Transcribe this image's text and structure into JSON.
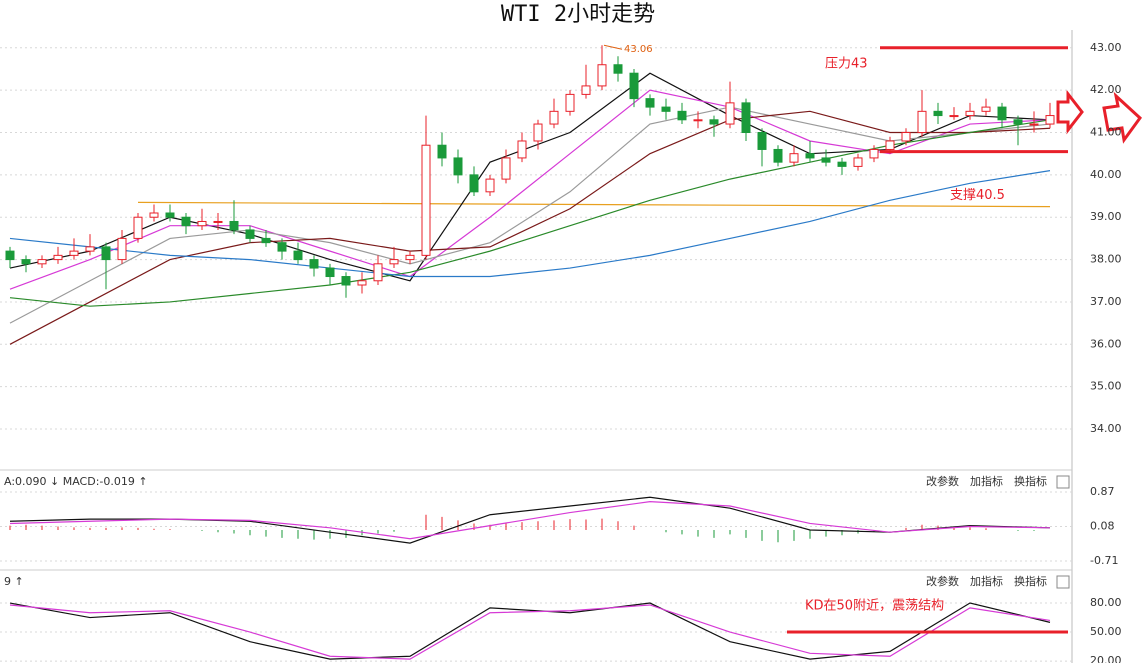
{
  "chart_data": [
    {
      "type": "candlestick",
      "title": "WTI 2小时走势",
      "ohlc": [
        [
          38.2,
          38.3,
          37.8,
          38.0
        ],
        [
          38.0,
          38.1,
          37.7,
          37.9
        ],
        [
          37.9,
          38.1,
          37.8,
          38.0
        ],
        [
          38.0,
          38.3,
          37.9,
          38.1
        ],
        [
          38.1,
          38.5,
          38.0,
          38.2
        ],
        [
          38.2,
          38.6,
          38.1,
          38.3
        ],
        [
          38.3,
          38.4,
          37.3,
          38.0
        ],
        [
          38.0,
          38.7,
          37.9,
          38.5
        ],
        [
          38.5,
          39.1,
          38.4,
          39.0
        ],
        [
          39.0,
          39.3,
          38.9,
          39.1
        ],
        [
          39.1,
          39.3,
          38.9,
          39.0
        ],
        [
          39.0,
          39.1,
          38.6,
          38.8
        ],
        [
          38.8,
          39.2,
          38.7,
          38.9
        ],
        [
          38.9,
          39.1,
          38.7,
          38.9
        ],
        [
          38.9,
          39.4,
          38.6,
          38.7
        ],
        [
          38.7,
          38.8,
          38.4,
          38.5
        ],
        [
          38.5,
          38.7,
          38.3,
          38.4
        ],
        [
          38.4,
          38.5,
          38.0,
          38.2
        ],
        [
          38.2,
          38.4,
          37.9,
          38.0
        ],
        [
          38.0,
          38.1,
          37.6,
          37.8
        ],
        [
          37.8,
          37.9,
          37.4,
          37.6
        ],
        [
          37.6,
          37.7,
          37.1,
          37.4
        ],
        [
          37.4,
          37.7,
          37.2,
          37.5
        ],
        [
          37.5,
          38.1,
          37.4,
          37.9
        ],
        [
          37.9,
          38.3,
          37.8,
          38.0
        ],
        [
          38.0,
          38.2,
          37.9,
          38.1
        ],
        [
          38.1,
          41.4,
          38.0,
          40.7
        ],
        [
          40.7,
          41.0,
          40.2,
          40.4
        ],
        [
          40.4,
          40.6,
          39.8,
          40.0
        ],
        [
          40.0,
          40.2,
          39.5,
          39.6
        ],
        [
          39.6,
          40.0,
          39.5,
          39.9
        ],
        [
          39.9,
          40.6,
          39.8,
          40.4
        ],
        [
          40.4,
          41.0,
          40.3,
          40.8
        ],
        [
          40.8,
          41.3,
          40.6,
          41.2
        ],
        [
          41.2,
          41.8,
          41.1,
          41.5
        ],
        [
          41.5,
          42.0,
          41.4,
          41.9
        ],
        [
          41.9,
          42.6,
          41.8,
          42.1
        ],
        [
          42.1,
          43.06,
          42.0,
          42.6
        ],
        [
          42.6,
          42.8,
          42.2,
          42.4
        ],
        [
          42.4,
          42.5,
          41.6,
          41.8
        ],
        [
          41.8,
          41.9,
          41.4,
          41.6
        ],
        [
          41.6,
          41.8,
          41.3,
          41.5
        ],
        [
          41.5,
          41.7,
          41.2,
          41.3
        ],
        [
          41.3,
          41.5,
          41.1,
          41.3
        ],
        [
          41.3,
          41.4,
          40.9,
          41.2
        ],
        [
          41.2,
          42.2,
          41.1,
          41.7
        ],
        [
          41.7,
          41.8,
          40.8,
          41.0
        ],
        [
          41.0,
          41.1,
          40.2,
          40.6
        ],
        [
          40.6,
          40.7,
          40.2,
          40.3
        ],
        [
          40.3,
          40.7,
          40.2,
          40.5
        ],
        [
          40.5,
          40.8,
          40.3,
          40.4
        ],
        [
          40.4,
          40.6,
          40.2,
          40.3
        ],
        [
          40.3,
          40.4,
          40.0,
          40.2
        ],
        [
          40.2,
          40.5,
          40.1,
          40.4
        ],
        [
          40.4,
          40.7,
          40.3,
          40.6
        ],
        [
          40.6,
          40.9,
          40.5,
          40.8
        ],
        [
          40.8,
          41.1,
          40.7,
          41.0
        ],
        [
          41.0,
          42.0,
          40.9,
          41.5
        ],
        [
          41.5,
          41.7,
          41.2,
          41.4
        ],
        [
          41.4,
          41.6,
          41.3,
          41.4
        ],
        [
          41.4,
          41.7,
          41.3,
          41.5
        ],
        [
          41.5,
          41.8,
          41.4,
          41.6
        ],
        [
          41.6,
          41.7,
          41.1,
          41.3
        ],
        [
          41.3,
          41.4,
          40.7,
          41.2
        ],
        [
          41.2,
          41.5,
          41.0,
          41.2
        ],
        [
          41.2,
          41.7,
          41.1,
          41.4
        ]
      ],
      "up_color": "#e8202a",
      "down_color": "#1a9a3a",
      "ylim": [
        33.08,
        43.42
      ],
      "yticks": [
        {
          "value": 34,
          "label": "34.00"
        },
        {
          "value": 35,
          "label": "35.00"
        },
        {
          "value": 36,
          "label": "36.00"
        },
        {
          "value": 37,
          "label": "37.00"
        },
        {
          "value": 38,
          "label": "38.00"
        },
        {
          "value": 39,
          "label": "39.00"
        },
        {
          "value": 40,
          "label": "40.00"
        },
        {
          "value": 41,
          "label": "41.00"
        },
        {
          "value": 42,
          "label": "42.00"
        },
        {
          "value": 43,
          "label": "43.00"
        }
      ],
      "x": [
        0,
        5,
        10,
        15,
        20,
        25,
        30,
        35,
        40,
        45,
        50,
        55,
        60,
        65
      ],
      "series": [
        {
          "color": "#111111",
          "values": [
            37.8,
            38.2,
            39.0,
            38.6,
            38.0,
            37.5,
            40.3,
            41.0,
            42.4,
            41.4,
            40.5,
            40.6,
            41.4,
            41.3
          ]
        },
        {
          "color": "#d63ad6",
          "values": [
            37.3,
            38.0,
            38.8,
            38.8,
            38.2,
            37.6,
            39.0,
            40.5,
            42.0,
            41.6,
            40.8,
            40.5,
            41.2,
            41.3
          ]
        },
        {
          "color": "#9a9a9a",
          "values": [
            36.5,
            37.5,
            38.5,
            38.7,
            38.4,
            37.9,
            38.4,
            39.6,
            41.2,
            41.6,
            41.2,
            40.8,
            41.0,
            41.2
          ]
        },
        {
          "color": "#7a1a1a",
          "values": [
            36.0,
            37.0,
            38.0,
            38.4,
            38.5,
            38.2,
            38.3,
            39.2,
            40.5,
            41.3,
            41.5,
            41.0,
            41.0,
            41.1
          ]
        },
        {
          "color": "#2a8a2a",
          "values": [
            37.1,
            36.9,
            37.0,
            37.2,
            37.4,
            37.7,
            38.2,
            38.8,
            39.4,
            39.9,
            40.3,
            40.7,
            41.0,
            41.3
          ]
        },
        {
          "color": "#2a7ac8",
          "values": [
            38.5,
            38.3,
            38.1,
            38.0,
            37.8,
            37.6,
            37.6,
            37.8,
            38.1,
            38.5,
            38.9,
            39.4,
            39.8,
            40.1
          ]
        }
      ],
      "trend_line": {
        "color": "#e8a020",
        "x": [
          8,
          65
        ],
        "values": [
          39.35,
          39.25
        ]
      },
      "levels": [
        {
          "label": "压力43",
          "value": 43,
          "color": "#e8202a"
        },
        {
          "label": "支撑40.5",
          "value": 40.55,
          "color": "#e8202a"
        }
      ],
      "grid": true
    },
    {
      "type": "macd",
      "header": "A:0.090 ↓ MACD:-0.019 ↑",
      "buttons": [
        "改参数",
        "加指标",
        "换指标"
      ],
      "ylim": [
        -0.87,
        1.26
      ],
      "yticks": [
        0.87,
        0.08,
        -0.71
      ],
      "x": [
        0,
        5,
        10,
        15,
        20,
        25,
        30,
        35,
        40,
        45,
        50,
        55,
        60,
        65
      ],
      "series": [
        {
          "color": "#111111",
          "values": [
            0.2,
            0.25,
            0.25,
            0.2,
            -0.05,
            -0.3,
            0.35,
            0.55,
            0.75,
            0.5,
            0.0,
            -0.05,
            0.1,
            0.05
          ]
        },
        {
          "color": "#d63ad6",
          "values": [
            0.15,
            0.2,
            0.25,
            0.22,
            0.05,
            -0.2,
            0.1,
            0.4,
            0.65,
            0.55,
            0.15,
            -0.05,
            0.08,
            0.05
          ]
        }
      ],
      "histogram": [
        0.1,
        0.12,
        0.1,
        0.08,
        0.06,
        0.05,
        0.05,
        0.06,
        0.05,
        0.03,
        0.02,
        0.0,
        -0.02,
        -0.05,
        -0.08,
        -0.12,
        -0.15,
        -0.18,
        -0.2,
        -0.22,
        -0.2,
        -0.18,
        -0.12,
        -0.08,
        -0.04,
        0.0,
        0.35,
        0.3,
        0.22,
        0.15,
        0.12,
        0.15,
        0.18,
        0.2,
        0.22,
        0.25,
        0.24,
        0.26,
        0.2,
        0.1,
        0.0,
        -0.05,
        -0.1,
        -0.15,
        -0.18,
        -0.1,
        -0.18,
        -0.25,
        -0.28,
        -0.25,
        -0.2,
        -0.15,
        -0.12,
        -0.08,
        -0.04,
        0.0,
        0.05,
        0.12,
        0.1,
        0.08,
        0.06,
        0.04,
        0.0,
        -0.02,
        -0.02,
        0.0
      ],
      "up_color": "#e8202a",
      "down_color": "#1a9a3a",
      "grid": true
    },
    {
      "type": "kd",
      "header": "9 ↑",
      "buttons": [
        "改参数",
        "加指标",
        "换指标"
      ],
      "ylim": [
        18,
        109
      ],
      "yticks": [
        {
          "value": 80,
          "label": "80.00"
        },
        {
          "value": 50,
          "label": "50.00"
        },
        {
          "value": 20,
          "label": "20.00"
        }
      ],
      "x": [
        0,
        5,
        10,
        15,
        20,
        25,
        30,
        35,
        40,
        45,
        50,
        55,
        60,
        65
      ],
      "series": [
        {
          "color": "#111111",
          "values": [
            80,
            65,
            70,
            40,
            22,
            25,
            75,
            70,
            80,
            40,
            22,
            30,
            80,
            60
          ]
        },
        {
          "color": "#d63ad6",
          "values": [
            78,
            70,
            72,
            50,
            25,
            22,
            70,
            72,
            78,
            50,
            28,
            25,
            75,
            62
          ]
        }
      ],
      "levels": [
        {
          "label": "KD在50附近，震荡结构",
          "value": 50,
          "color": "#e8202a"
        }
      ],
      "grid": true
    }
  ]
}
